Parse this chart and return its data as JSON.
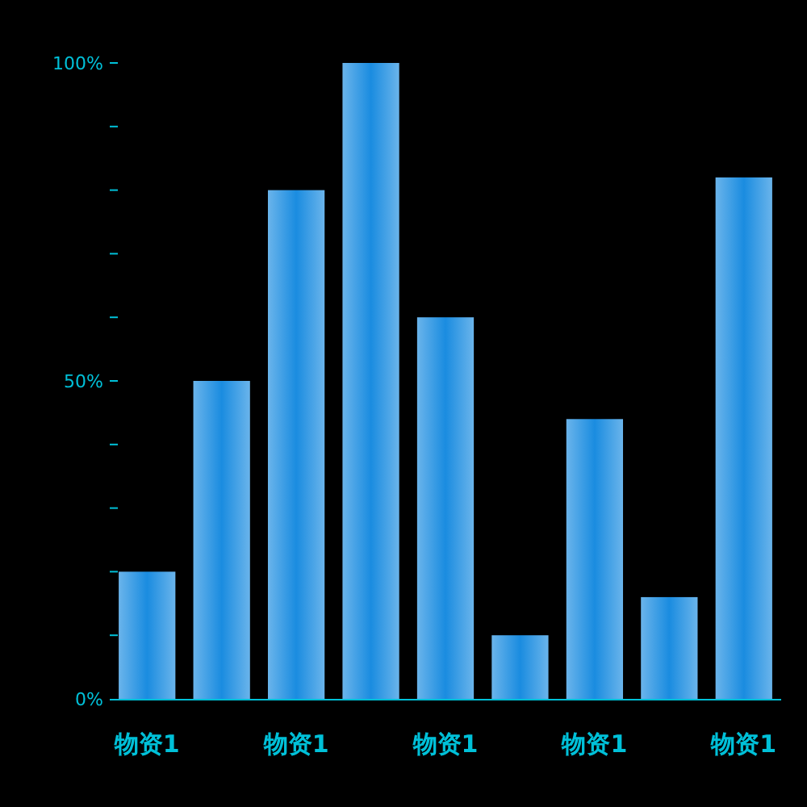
{
  "chart_data": {
    "type": "bar",
    "categories": [
      "物资1",
      null,
      "物资1",
      null,
      "物资1",
      null,
      "物资1",
      null,
      "物资1"
    ],
    "values": [
      20,
      50,
      80,
      100,
      60,
      10,
      44,
      16,
      82
    ],
    "color": "#1a8ce0",
    "ylim": [
      0,
      100
    ],
    "yticks": [
      {
        "value": 0,
        "label": "0%"
      },
      {
        "value": 10,
        "label": null
      },
      {
        "value": 20,
        "label": null
      },
      {
        "value": 30,
        "label": null
      },
      {
        "value": 40,
        "label": null
      },
      {
        "value": 50,
        "label": "50%"
      },
      {
        "value": 60,
        "label": null
      },
      {
        "value": 70,
        "label": null
      },
      {
        "value": 80,
        "label": null
      },
      {
        "value": 90,
        "label": null
      },
      {
        "value": 100,
        "label": "100%"
      }
    ]
  }
}
